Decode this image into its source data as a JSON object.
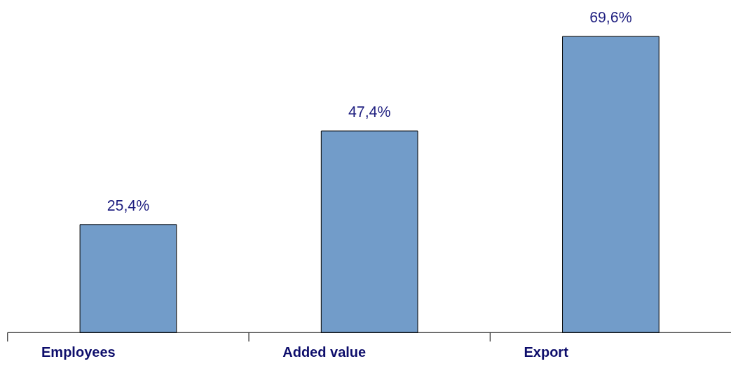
{
  "chart_data": {
    "type": "bar",
    "categories": [
      "Employees",
      "Added value",
      "Export"
    ],
    "values": [
      25.4,
      47.4,
      69.6
    ],
    "color": "#729cc9",
    "value_labels": [
      "25,4%",
      "47,4%",
      "69,6%"
    ],
    "grid": false
  }
}
